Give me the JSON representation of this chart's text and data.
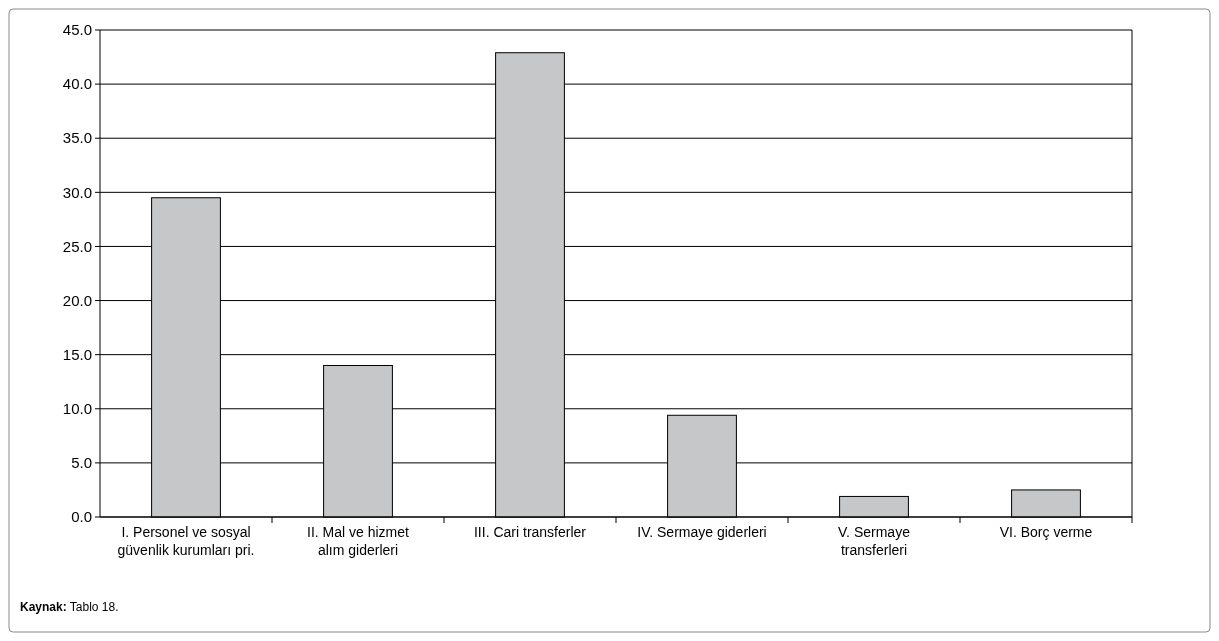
{
  "chart_data": {
    "type": "bar",
    "categories": [
      "I. Personel ve sosyal güvenlik kurumları pri.",
      "II. Mal ve hizmet alım giderleri",
      "III. Cari transferler",
      "IV. Sermaye giderleri",
      "V. Sermaye transferleri",
      "VI. Borç verme"
    ],
    "values": [
      29.5,
      14.0,
      42.9,
      9.4,
      1.9,
      2.5
    ],
    "color": "#c6c7c9",
    "ylim": [
      0,
      45
    ],
    "yticks": [
      {
        "value": 0,
        "label": "0.0"
      },
      {
        "value": 5,
        "label": "5.0"
      },
      {
        "value": 10,
        "label": "10.0"
      },
      {
        "value": 15,
        "label": "15.0"
      },
      {
        "value": 20,
        "label": "20.0"
      },
      {
        "value": 25,
        "label": "25.0"
      },
      {
        "value": 30,
        "label": "30.0"
      },
      {
        "value": 35,
        "label": "35.0"
      },
      {
        "value": 40,
        "label": "40.0"
      },
      {
        "value": 45,
        "label": "45.0"
      }
    ],
    "grid": "y",
    "annotations": [
      "Kaynak: Tablo 18."
    ]
  }
}
